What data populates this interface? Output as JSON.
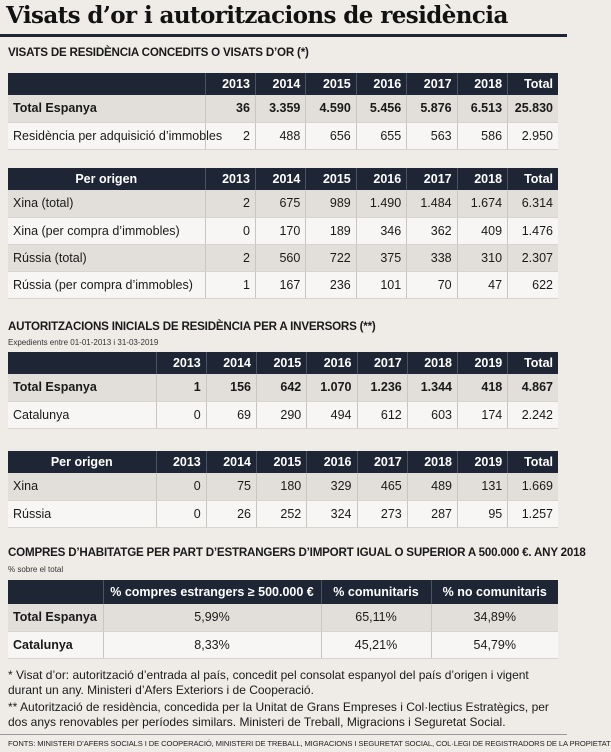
{
  "title": "Visats d’or i autoritzacions de residència",
  "section1": {
    "title": "VISATS DE RESIDÈNCIA CONCEDITS O VISATS D’OR (*)",
    "table1": {
      "header": [
        "",
        "2013",
        "2014",
        "2015",
        "2016",
        "2017",
        "2018",
        "Total"
      ],
      "rows": [
        [
          "Total Espanya",
          "36",
          "3.359",
          "4.590",
          "5.456",
          "5.876",
          "6.513",
          "25.830"
        ],
        [
          "Residència per adquisició d’immobles",
          "2",
          "488",
          "656",
          "655",
          "563",
          "586",
          "2.950"
        ]
      ]
    },
    "table2": {
      "header": [
        "Per origen",
        "2013",
        "2014",
        "2015",
        "2016",
        "2017",
        "2018",
        "Total"
      ],
      "rows": [
        [
          "Xina (total)",
          "2",
          "675",
          "989",
          "1.490",
          "1.484",
          "1.674",
          "6.314"
        ],
        [
          "Xina (per compra d’immobles)",
          "0",
          "170",
          "189",
          "346",
          "362",
          "409",
          "1.476"
        ],
        [
          "Rússia (total)",
          "2",
          "560",
          "722",
          "375",
          "338",
          "310",
          "2.307"
        ],
        [
          "Rússia (per compra d’immobles)",
          "1",
          "167",
          "236",
          "101",
          "70",
          "47",
          "622"
        ]
      ]
    }
  },
  "section2": {
    "title": "AUTORITZACIONS INICIALS DE RESIDÈNCIA PER A INVERSORS (**)",
    "note": "Expedients entre 01-01-2013 i 31-03-2019",
    "table1": {
      "header": [
        "",
        "2013",
        "2014",
        "2015",
        "2016",
        "2017",
        "2018",
        "2019",
        "Total"
      ],
      "rows": [
        [
          "Total Espanya",
          "1",
          "156",
          "642",
          "1.070",
          "1.236",
          "1.344",
          "418",
          "4.867"
        ],
        [
          "Catalunya",
          "0",
          "69",
          "290",
          "494",
          "612",
          "603",
          "174",
          "2.242"
        ]
      ]
    },
    "table2": {
      "header": [
        "Per origen",
        "2013",
        "2014",
        "2015",
        "2016",
        "2017",
        "2018",
        "2019",
        "Total"
      ],
      "rows": [
        [
          "Xina",
          "0",
          "75",
          "180",
          "329",
          "465",
          "489",
          "131",
          "1.669"
        ],
        [
          "Rússia",
          "0",
          "26",
          "252",
          "324",
          "273",
          "287",
          "95",
          "1.257"
        ]
      ]
    }
  },
  "section3": {
    "title": "COMPRES D’HABITATGE PER PART D’ESTRANGERS D’IMPORT IGUAL O SUPERIOR A 500.000 €. ANY 2018",
    "note": "% sobre el total",
    "table": {
      "header": [
        "",
        "% compres estrangers ≥ 500.000 €",
        "% comunitaris",
        "% no comunitaris"
      ],
      "rows": [
        [
          "Total Espanya",
          "5,99%",
          "65,11%",
          "34,89%"
        ],
        [
          "Catalunya",
          "8,33%",
          "45,21%",
          "54,79%"
        ]
      ]
    }
  },
  "footnotes": [
    "* Visat d’or: autorització d’entrada al país, concedit pel consolat espanyol del país d’origen i vigent durant un any. Ministeri d’Afers Exteriors i de Cooperació.",
    "** Autorització de residència, concedida per la Unitat de Grans Empreses i Col·lectius Estratègics, per dos anys renovables per períodes similars. Ministeri de Treball, Migracions i Seguretat Social."
  ],
  "sources": "FONTS: MINISTERI D’AFERS SOCIALS I DE COOPERACIÓ, MINISTERI DE TREBALL, MIGRACIONS I SEGURETAT SOCIAL, COL·LEGI DE REGISTRADORS DE LA PROPIETAT"
}
